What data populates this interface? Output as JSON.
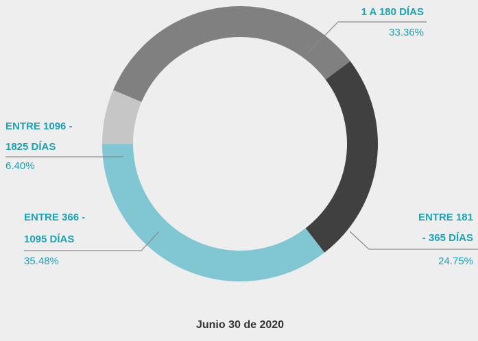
{
  "chart_data": {
    "type": "pie",
    "donut": true,
    "title": "Junio 30 de 2020",
    "categories": [
      [
        "1  A 180 DÍAS"
      ],
      [
        "ENTRE 181",
        "- 365 DÍAS"
      ],
      [
        "ENTRE 366 -",
        "1095 DÍAS"
      ],
      [
        "ENTRE 1096 -",
        "1825 DÍAS"
      ]
    ],
    "values": [
      33.36,
      24.75,
      35.48,
      6.4
    ],
    "value_labels": [
      "33.36%",
      "24.75%",
      "35.48%",
      "6.40%"
    ],
    "colors": [
      "#808080",
      "#404040",
      "#80c7d3",
      "#c6c6c6"
    ]
  }
}
